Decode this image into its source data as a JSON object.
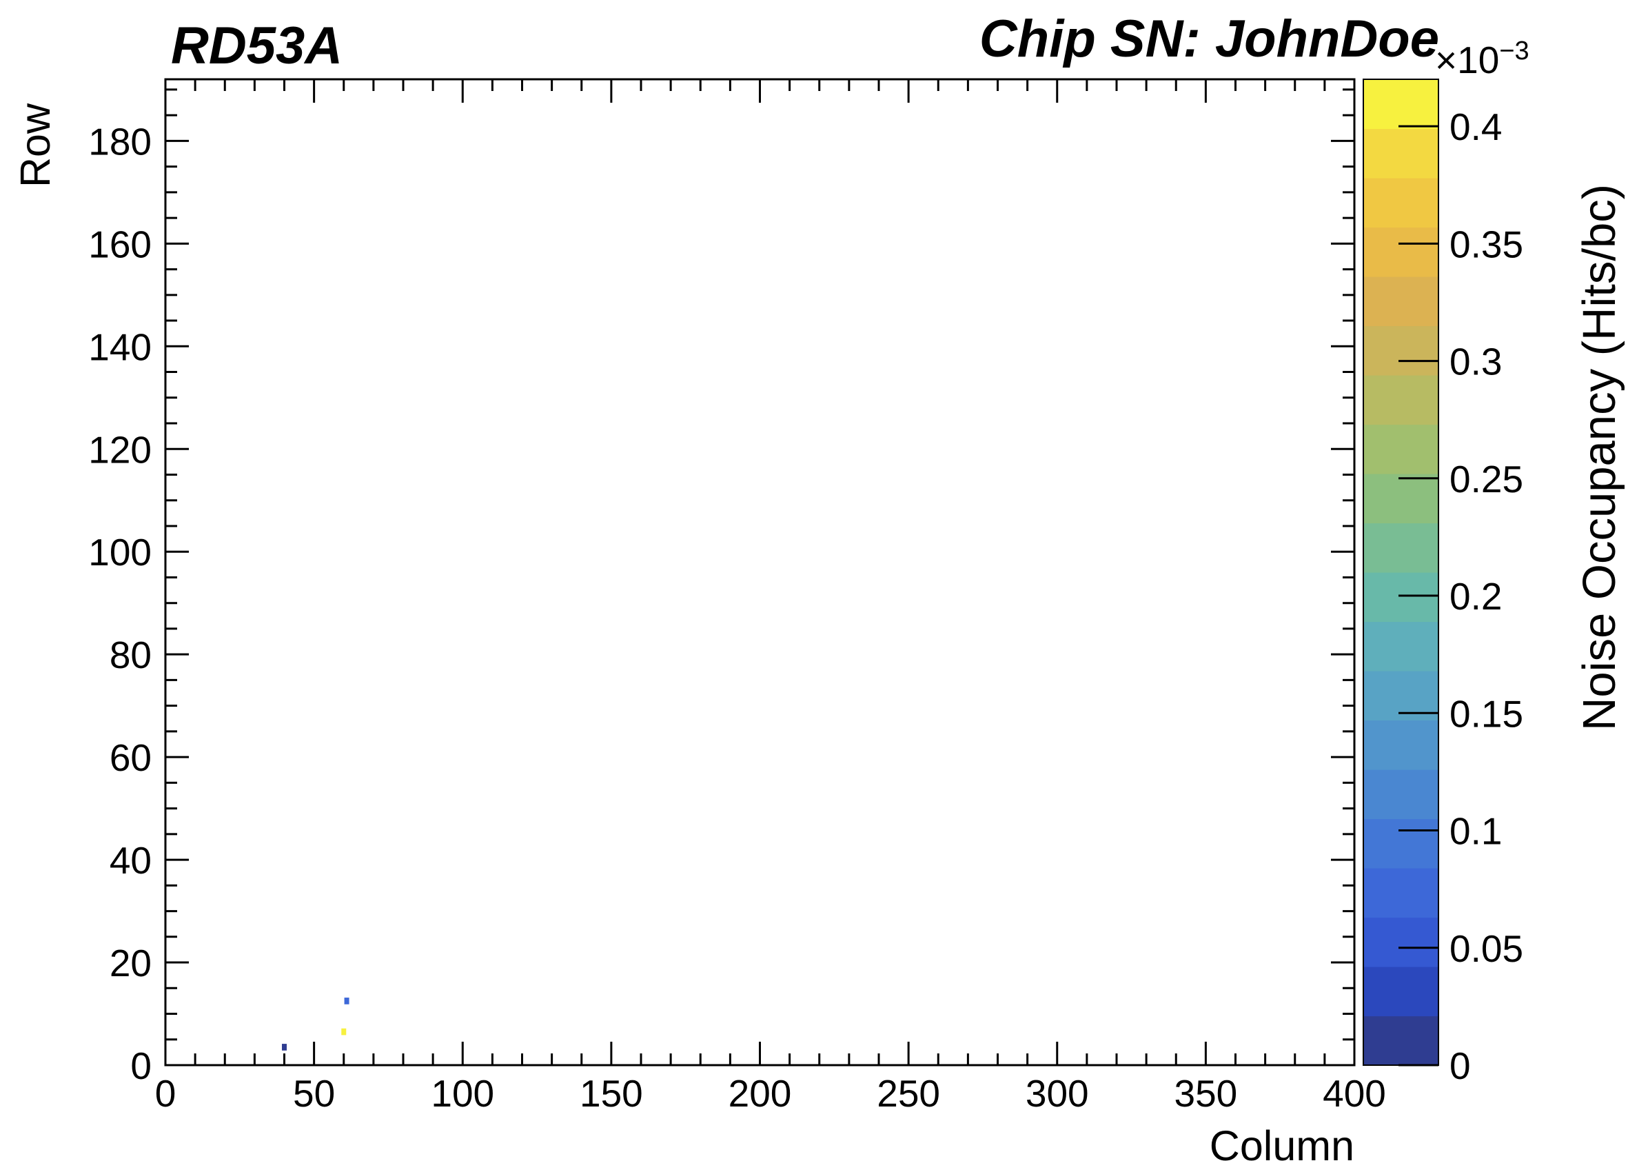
{
  "chart_data": {
    "type": "heatmap",
    "header_left": "RD53A",
    "header_right": "Chip SN: JohnDoe",
    "xlabel": "Column",
    "ylabel": "Row",
    "zlabel": "Noise Occupancy (Hits/bc)",
    "z_multiplier": "×10",
    "z_multiplier_exponent": "−3",
    "xlim": [
      0,
      400
    ],
    "ylim": [
      0,
      192
    ],
    "zlim": [
      0,
      0.42
    ],
    "x_ticks": [
      "0",
      "50",
      "100",
      "150",
      "200",
      "250",
      "300",
      "350",
      "400"
    ],
    "y_ticks": [
      "0",
      "20",
      "40",
      "60",
      "80",
      "100",
      "120",
      "140",
      "160",
      "180"
    ],
    "z_ticks": [
      "0",
      "0.05",
      "0.1",
      "0.15",
      "0.2",
      "0.25",
      "0.3",
      "0.35",
      "0.4"
    ],
    "colorbar_palette": [
      "#2f3d91",
      "#2b48bd",
      "#3559d2",
      "#3d68d8",
      "#4377d6",
      "#4a87d1",
      "#5195cc",
      "#58a3c5",
      "#5fafbb",
      "#68b9a9",
      "#79bd94",
      "#8cbf7e",
      "#a1bf6e",
      "#b7bb63",
      "#cbb55b",
      "#dcb252",
      "#e9bb48",
      "#f0c843",
      "#f3d941",
      "#f7f13f"
    ],
    "points": [
      {
        "column": 40,
        "row": 3,
        "value": 0.02
      },
      {
        "column": 61,
        "row": 12,
        "value": 0.07
      },
      {
        "column": 60,
        "row": 6,
        "value": 0.41
      }
    ],
    "grid": false,
    "legend": "none"
  }
}
